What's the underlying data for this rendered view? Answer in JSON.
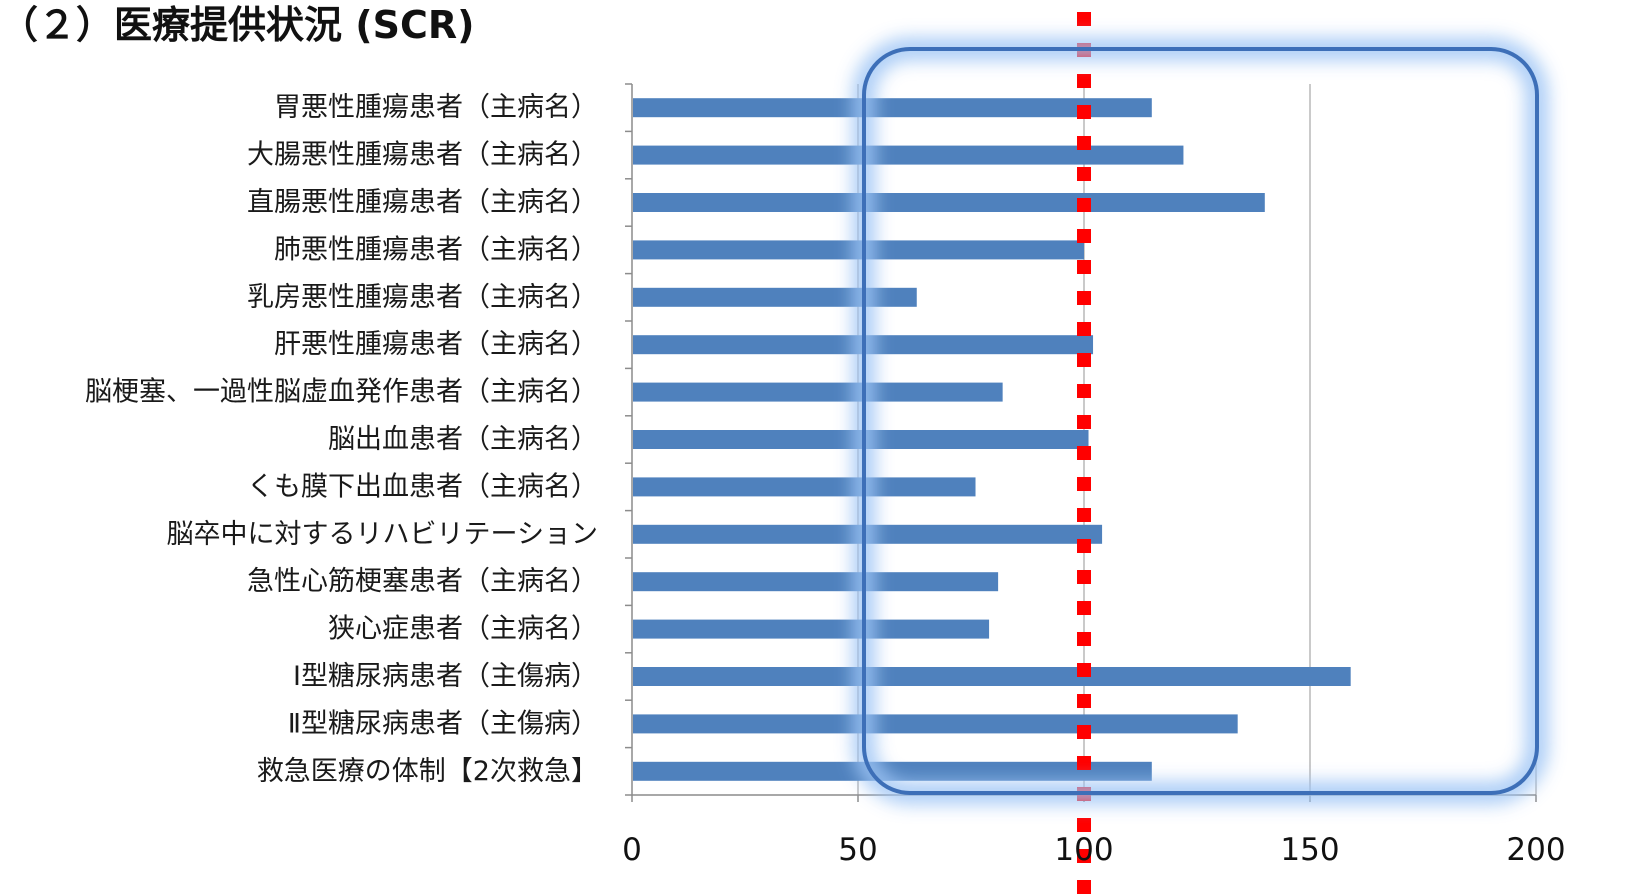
{
  "title": "（２）医療提供状況 (SCR)",
  "chart_data": {
    "type": "bar",
    "orientation": "horizontal",
    "categories": [
      "胃悪性腫瘍患者（主病名）",
      "大腸悪性腫瘍患者（主病名）",
      "直腸悪性腫瘍患者（主病名）",
      "肺悪性腫瘍患者（主病名）",
      "乳房悪性腫瘍患者（主病名）",
      "肝悪性腫瘍患者（主病名）",
      "脳梗塞、一過性脳虚血発作患者（主病名）",
      "脳出血患者（主病名）",
      "くも膜下出血患者（主病名）",
      "脳卒中に対するリハビリテーション",
      "急性心筋梗塞患者（主病名）",
      "狭心症患者（主病名）",
      "Ⅰ型糖尿病患者（主傷病）",
      "Ⅱ型糖尿病患者（主傷病）",
      "救急医療の体制【2次救急】"
    ],
    "values": [
      115,
      122,
      140,
      100,
      63,
      102,
      82,
      101,
      76,
      104,
      81,
      79,
      159,
      134,
      115
    ],
    "xlim": [
      0,
      200
    ],
    "xticks": [
      0,
      50,
      100,
      150,
      200
    ],
    "reference_line": 100,
    "grid": true,
    "legend": "none",
    "colors": {
      "bar": "#4f81bd",
      "grid": "#a6a6a6",
      "reference": "#ff0000",
      "highlight": "#3d6fb8",
      "highlight_glow": "#9ec5f5"
    }
  }
}
